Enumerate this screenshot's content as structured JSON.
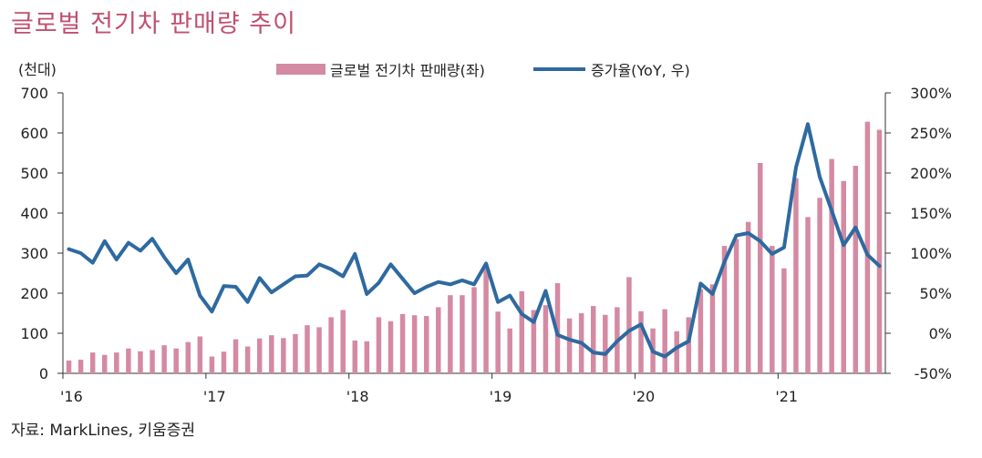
{
  "header": {
    "title": "글로벌 전기차 판매량 추이"
  },
  "footer": {
    "source": "자료: MarkLines, 키움증권"
  },
  "colors": {
    "bar": "#d48aa2",
    "line": "#2e6aa0",
    "title": "#c0506e"
  },
  "chart_data": {
    "type": "bar",
    "title": "글로벌 전기차 판매량 추이",
    "left_axis_unit": "(천대)",
    "ylim": [
      0,
      700
    ],
    "y2lim": [
      -50,
      300
    ],
    "yticks": [
      "700",
      "600",
      "500",
      "400",
      "300",
      "200",
      "100",
      "0"
    ],
    "y2ticks": [
      "300%",
      "250%",
      "200%",
      "150%",
      "100%",
      "50%",
      "0%",
      "-50%"
    ],
    "xticks": [
      {
        "label": "'16",
        "index": 0
      },
      {
        "label": "'17",
        "index": 12
      },
      {
        "label": "'18",
        "index": 24
      },
      {
        "label": "'19",
        "index": 36
      },
      {
        "label": "'20",
        "index": 48
      },
      {
        "label": "'21",
        "index": 60
      }
    ],
    "legend": {
      "placement": "top"
    },
    "series": [
      {
        "name": "글로벌 전기차 판매량(좌)",
        "type": "bar",
        "axis": "left",
        "values": [
          32,
          34,
          52,
          46,
          52,
          62,
          55,
          58,
          70,
          62,
          78,
          92,
          42,
          54,
          85,
          67,
          87,
          95,
          88,
          98,
          120,
          115,
          140,
          158,
          82,
          80,
          140,
          130,
          148,
          145,
          143,
          165,
          195,
          195,
          215,
          262,
          154,
          112,
          205,
          158,
          170,
          225,
          137,
          150,
          168,
          146,
          165,
          240,
          155,
          112,
          160,
          105,
          140,
          210,
          222,
          318,
          335,
          378,
          525,
          318,
          262,
          487,
          390,
          438,
          535,
          480,
          518,
          628,
          608
        ]
      },
      {
        "name": "증가율(YoY, 우)",
        "type": "line",
        "axis": "right",
        "values": [
          105,
          100,
          88,
          115,
          92,
          113,
          103,
          118,
          95,
          75,
          92,
          47,
          27,
          59,
          58,
          39,
          69,
          51,
          61,
          71,
          72,
          86,
          80,
          71,
          99,
          49,
          63,
          86,
          68,
          50,
          58,
          64,
          61,
          66,
          61,
          87,
          39,
          47,
          24,
          14,
          53,
          -2,
          -8,
          -12,
          -24,
          -26,
          -10,
          3,
          11,
          -23,
          -29,
          -18,
          -10,
          62,
          49,
          89,
          122,
          125,
          115,
          99,
          107,
          207,
          261,
          195,
          153,
          110,
          132,
          98,
          84
        ]
      }
    ]
  }
}
